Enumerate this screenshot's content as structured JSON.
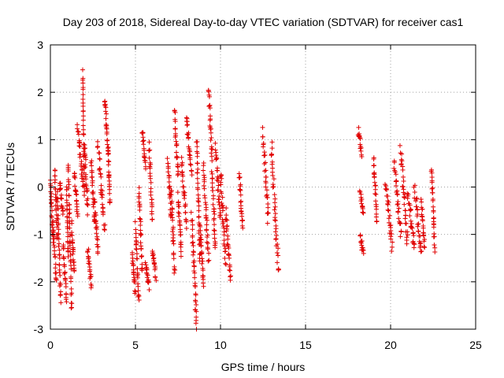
{
  "chart_data": {
    "type": "scatter",
    "title": "Day 203 of 2018, Sidereal Day-to-day VTEC variation (SDTVAR) for receiver cas1",
    "xlabel": "GPS time / hours",
    "ylabel": "SDTVAR / TECUs",
    "xlim": [
      0,
      25
    ],
    "ylim": [
      -3,
      3
    ],
    "xticks": [
      0,
      5,
      10,
      15,
      20,
      25
    ],
    "yticks": [
      -3,
      -2,
      -1,
      0,
      1,
      2,
      3
    ],
    "xtick_labels": [
      "0",
      "5",
      "10",
      "15",
      "20",
      "25"
    ],
    "ytick_labels": [
      "-3",
      "-2",
      "-1",
      "0",
      "1",
      "2",
      "3"
    ],
    "grid": true,
    "marker": "+",
    "color": "#e00000",
    "series": [
      {
        "name": "SDTVAR",
        "tracks": [
          {
            "x0": 0.0,
            "x1": 0.15,
            "y0": 0.1,
            "y1": -1.1
          },
          {
            "x0": 0.15,
            "x1": 0.35,
            "y0": -0.8,
            "y1": -2.0
          },
          {
            "x0": 0.25,
            "x1": 0.4,
            "y0": 0.4,
            "y1": -1.1
          },
          {
            "x0": 0.4,
            "x1": 0.6,
            "y0": -0.1,
            "y1": -2.4
          },
          {
            "x0": 0.55,
            "x1": 0.75,
            "y0": 0.1,
            "y1": -0.6
          },
          {
            "x0": 0.75,
            "x1": 0.95,
            "y0": -1.2,
            "y1": -2.4
          },
          {
            "x0": 0.95,
            "x1": 1.05,
            "y0": 0.0,
            "y1": -1.5
          },
          {
            "x0": 1.05,
            "x1": 1.25,
            "y0": 0.5,
            "y1": -2.6
          },
          {
            "x0": 1.25,
            "x1": 1.4,
            "y0": -0.8,
            "y1": -1.8
          },
          {
            "x0": 1.4,
            "x1": 1.6,
            "y0": 0.3,
            "y1": -0.6
          },
          {
            "x0": 1.6,
            "x1": 1.9,
            "y0": 1.3,
            "y1": 0.1
          },
          {
            "x0": 1.9,
            "x1": 2.0,
            "y0": 2.4,
            "y1": -0.2
          },
          {
            "x0": 2.0,
            "x1": 2.2,
            "y0": 0.9,
            "y1": -0.5
          },
          {
            "x0": 2.2,
            "x1": 2.4,
            "y0": -1.3,
            "y1": -2.1
          },
          {
            "x0": 2.4,
            "x1": 2.6,
            "y0": 0.6,
            "y1": -0.8
          },
          {
            "x0": 2.6,
            "x1": 2.8,
            "y0": -0.3,
            "y1": -1.4
          },
          {
            "x0": 2.8,
            "x1": 3.2,
            "y0": 0.9,
            "y1": -0.9
          },
          {
            "x0": 3.2,
            "x1": 3.4,
            "y0": 1.9,
            "y1": 0.7
          },
          {
            "x0": 3.4,
            "x1": 3.5,
            "y0": 0.8,
            "y1": -0.4
          },
          {
            "x0": 4.8,
            "x1": 5.0,
            "y0": -1.4,
            "y1": -2.2
          },
          {
            "x0": 5.0,
            "x1": 5.2,
            "y0": -0.8,
            "y1": -2.4
          },
          {
            "x0": 5.2,
            "x1": 5.4,
            "y0": 0.0,
            "y1": -1.8
          },
          {
            "x0": 5.4,
            "x1": 5.6,
            "y0": 1.2,
            "y1": 0.4
          },
          {
            "x0": 5.6,
            "x1": 5.8,
            "y0": -1.6,
            "y1": -2.1
          },
          {
            "x0": 5.8,
            "x1": 6.0,
            "y0": 0.9,
            "y1": -0.7
          },
          {
            "x0": 6.0,
            "x1": 6.2,
            "y0": -1.3,
            "y1": -1.9
          },
          {
            "x0": 6.9,
            "x1": 7.1,
            "y0": 0.6,
            "y1": -0.6
          },
          {
            "x0": 7.1,
            "x1": 7.3,
            "y0": 0.0,
            "y1": -1.8
          },
          {
            "x0": 7.3,
            "x1": 7.5,
            "y0": 1.6,
            "y1": 0.2
          },
          {
            "x0": 7.5,
            "x1": 7.7,
            "y0": -0.2,
            "y1": -1.4
          },
          {
            "x0": 7.7,
            "x1": 8.0,
            "y0": 0.6,
            "y1": -0.8
          },
          {
            "x0": 8.0,
            "x1": 8.3,
            "y0": 1.5,
            "y1": 0.3
          },
          {
            "x0": 8.3,
            "x1": 8.6,
            "y0": -0.6,
            "y1": -3.0
          },
          {
            "x0": 8.6,
            "x1": 8.8,
            "y0": 1.0,
            "y1": -1.6
          },
          {
            "x0": 8.8,
            "x1": 9.0,
            "y0": -0.8,
            "y1": -2.1
          },
          {
            "x0": 9.0,
            "x1": 9.3,
            "y0": 0.5,
            "y1": -1.6
          },
          {
            "x0": 9.3,
            "x1": 9.5,
            "y0": 2.1,
            "y1": 0.6
          },
          {
            "x0": 9.5,
            "x1": 9.7,
            "y0": 0.3,
            "y1": -1.3
          },
          {
            "x0": 9.7,
            "x1": 10.0,
            "y0": 0.9,
            "y1": -0.7
          },
          {
            "x0": 10.0,
            "x1": 10.3,
            "y0": 0.3,
            "y1": -1.6
          },
          {
            "x0": 10.3,
            "x1": 10.6,
            "y0": -0.5,
            "y1": -1.9
          },
          {
            "x0": 11.1,
            "x1": 11.3,
            "y0": 0.3,
            "y1": -0.9
          },
          {
            "x0": 12.5,
            "x1": 12.8,
            "y0": 1.2,
            "y1": -0.7
          },
          {
            "x0": 13.0,
            "x1": 13.4,
            "y0": 0.9,
            "y1": -1.8
          },
          {
            "x0": 18.1,
            "x1": 18.3,
            "y0": 1.2,
            "y1": 0.7
          },
          {
            "x0": 18.2,
            "x1": 18.4,
            "y0": -0.1,
            "y1": -0.5
          },
          {
            "x0": 18.2,
            "x1": 18.4,
            "y0": -1.0,
            "y1": -1.4
          },
          {
            "x0": 19.0,
            "x1": 19.2,
            "y0": 0.6,
            "y1": -0.7
          },
          {
            "x0": 19.7,
            "x1": 20.1,
            "y0": 0.1,
            "y1": -1.3
          },
          {
            "x0": 20.2,
            "x1": 20.6,
            "y0": 0.5,
            "y1": -1.0
          },
          {
            "x0": 20.6,
            "x1": 21.0,
            "y0": 0.8,
            "y1": -1.2
          },
          {
            "x0": 21.0,
            "x1": 21.4,
            "y0": -0.1,
            "y1": -1.3
          },
          {
            "x0": 21.4,
            "x1": 21.8,
            "y0": 0.0,
            "y1": -1.4
          },
          {
            "x0": 21.8,
            "x1": 22.0,
            "y0": -0.3,
            "y1": -1.3
          },
          {
            "x0": 22.4,
            "x1": 22.6,
            "y0": 0.4,
            "y1": -1.3
          }
        ]
      }
    ]
  }
}
